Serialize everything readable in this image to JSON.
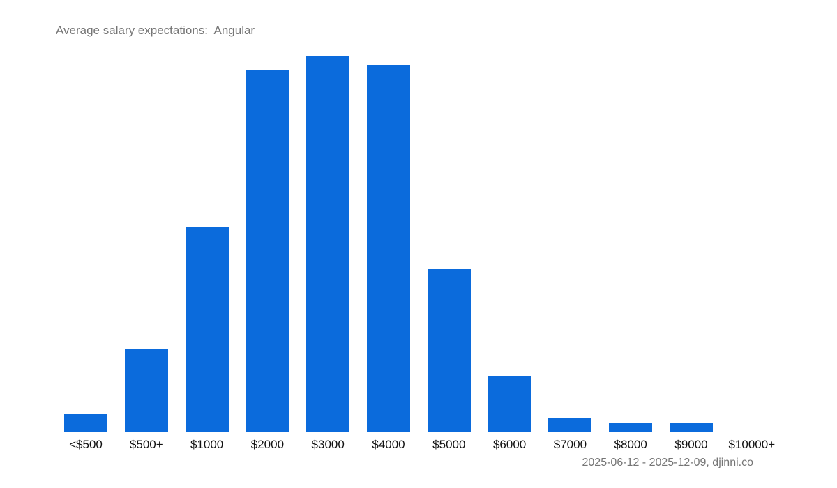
{
  "title": "Average salary expectations:  Angular",
  "source": "2025-06-12 - 2025-12-09, djinni.co",
  "colors": {
    "bar": "#0b6bdc",
    "title": "#757575",
    "label": "#111111"
  },
  "chart_data": {
    "type": "bar",
    "title": "Average salary expectations:  Angular",
    "xlabel": "",
    "ylabel": "",
    "categories": [
      "<$500",
      "$500+",
      "$1000",
      "$2000",
      "$3000",
      "$4000",
      "$5000",
      "$6000",
      "$7000",
      "$8000",
      "$9000",
      "$10000+"
    ],
    "values": [
      4.8,
      22.0,
      54.4,
      96.1,
      100.0,
      97.6,
      43.3,
      15.0,
      3.9,
      2.4,
      2.4,
      0
    ],
    "value_unit": "relative bar height (% of max)",
    "grid": false,
    "legend": null,
    "annotations": [
      "2025-06-12 - 2025-12-09, djinni.co"
    ]
  }
}
